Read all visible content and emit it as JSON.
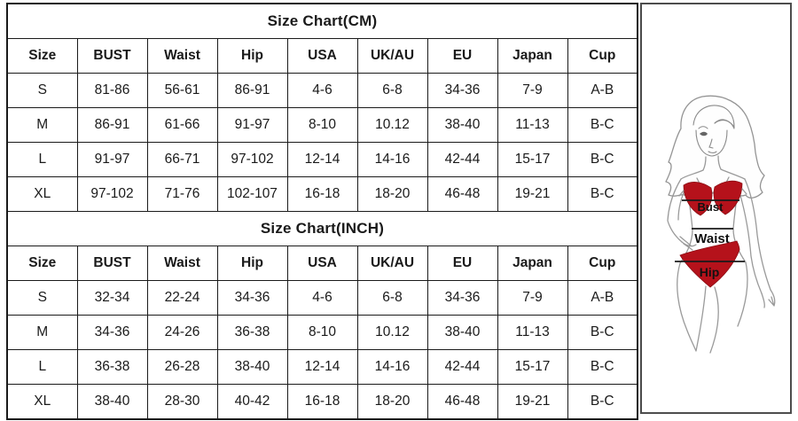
{
  "size_chart": {
    "columns": [
      "Size",
      "BUST",
      "Waist",
      "Hip",
      "USA",
      "UK/AU",
      "EU",
      "Japan",
      "Cup"
    ],
    "sections": [
      {
        "id": "cm",
        "title": "Size Chart(CM)",
        "rows": [
          [
            "S",
            "81-86",
            "56-61",
            "86-91",
            "4-6",
            "6-8",
            "34-36",
            "7-9",
            "A-B"
          ],
          [
            "M",
            "86-91",
            "61-66",
            "91-97",
            "8-10",
            "10.12",
            "38-40",
            "11-13",
            "B-C"
          ],
          [
            "L",
            "91-97",
            "66-71",
            "97-102",
            "12-14",
            "14-16",
            "42-44",
            "15-17",
            "B-C"
          ],
          [
            "XL",
            "97-102",
            "71-76",
            "102-107",
            "16-18",
            "18-20",
            "46-48",
            "19-21",
            "B-C"
          ]
        ]
      },
      {
        "id": "inch",
        "title": "Size Chart(INCH)",
        "rows": [
          [
            "S",
            "32-34",
            "22-24",
            "34-36",
            "4-6",
            "6-8",
            "34-36",
            "7-9",
            "A-B"
          ],
          [
            "M",
            "34-36",
            "24-26",
            "36-38",
            "8-10",
            "10.12",
            "38-40",
            "11-13",
            "B-C"
          ],
          [
            "L",
            "36-38",
            "26-28",
            "38-40",
            "12-14",
            "14-16",
            "42-44",
            "15-17",
            "B-C"
          ],
          [
            "XL",
            "38-40",
            "28-30",
            "40-42",
            "16-18",
            "18-20",
            "46-48",
            "19-21",
            "B-C"
          ]
        ]
      }
    ]
  },
  "figure": {
    "bust_label": "Bust",
    "waist_label": "Waist",
    "hip_label": "Hip",
    "colors": {
      "bikini_red": "#b5121b",
      "table_border": "#1a1a1a",
      "panel_border": "#4d4d4d",
      "sketch_gray": "#9a9a9a"
    }
  }
}
